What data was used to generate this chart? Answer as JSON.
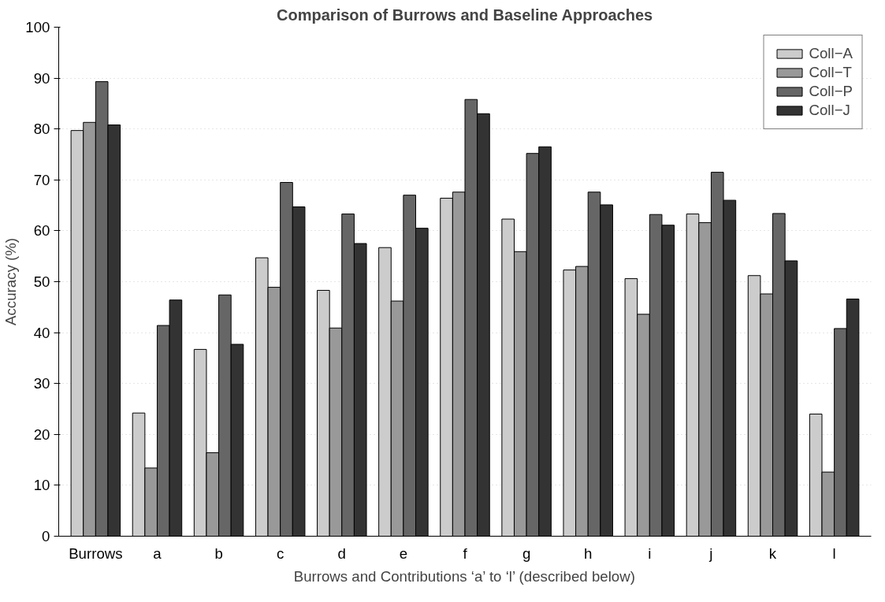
{
  "chart_data": {
    "type": "bar",
    "title": "Comparison of Burrows and Baseline Approaches",
    "xlabel": "Burrows and Contributions ‘a’ to ‘l’ (described below)",
    "ylabel": "Accuracy (%)",
    "categories": [
      "Burrows",
      "a",
      "b",
      "c",
      "d",
      "e",
      "f",
      "g",
      "h",
      "i",
      "j",
      "k",
      "l"
    ],
    "series": [
      {
        "name": "Coll−A",
        "color": "#cccccc",
        "values": [
          79.7,
          24.2,
          36.7,
          54.7,
          48.3,
          56.7,
          66.4,
          62.3,
          52.3,
          50.6,
          63.3,
          51.2,
          24.0
        ]
      },
      {
        "name": "Coll−T",
        "color": "#999999",
        "values": [
          81.3,
          13.4,
          16.4,
          48.9,
          40.9,
          46.2,
          67.6,
          55.9,
          53.0,
          43.6,
          61.6,
          47.6,
          12.6
        ]
      },
      {
        "name": "Coll−P",
        "color": "#666666",
        "values": [
          89.3,
          41.4,
          47.4,
          69.5,
          63.3,
          67.0,
          85.8,
          75.2,
          67.6,
          63.2,
          71.5,
          63.4,
          40.8
        ]
      },
      {
        "name": "Coll−J",
        "color": "#333333",
        "values": [
          80.8,
          46.4,
          37.7,
          64.7,
          57.5,
          60.5,
          83.0,
          76.5,
          65.1,
          61.1,
          66.0,
          54.1,
          46.6
        ]
      }
    ],
    "ylim": [
      0,
      100
    ],
    "yticks": [
      0,
      10,
      20,
      30,
      40,
      50,
      60,
      70,
      80,
      90,
      100
    ],
    "grid": "y",
    "legend": "top right"
  }
}
